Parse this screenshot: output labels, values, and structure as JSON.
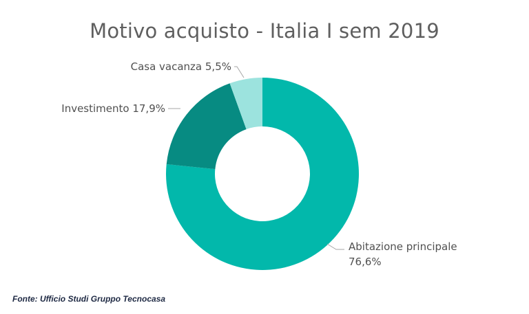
{
  "chart_data": {
    "type": "pie",
    "title": "Motivo acquisto - Italia I sem 2019",
    "slices": [
      {
        "name": "Abitazione principale",
        "value": 76.6,
        "label_lines": [
          "Abitazione principale",
          "76,6%"
        ],
        "color": "#02b8ab"
      },
      {
        "name": "Investimento",
        "value": 17.9,
        "label_lines": [
          "Investimento 17,9%"
        ],
        "color": "#078b82"
      },
      {
        "name": "Casa vacanza",
        "value": 5.5,
        "label_lines": [
          "Casa vacanza 5,5%"
        ],
        "color": "#9ce3de"
      }
    ],
    "donut": true
  },
  "source_note": "Fonte: Ufficio Studi Gruppo Tecnocasa"
}
